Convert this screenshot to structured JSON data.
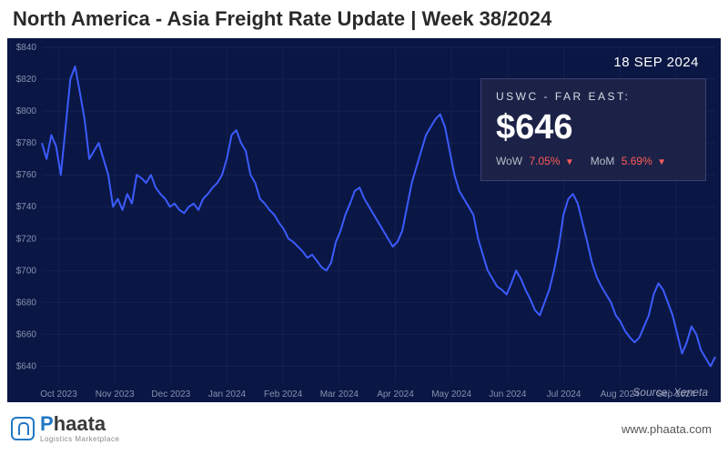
{
  "header": {
    "title": "North America - Asia Freight Rate Update | Week 38/2024"
  },
  "chart": {
    "type": "line",
    "background_color": "#0a1744",
    "grid_color": "#152052",
    "line_color": "#3c5bff",
    "line_width": 2,
    "ylim": [
      630,
      840
    ],
    "ytick_step": 20,
    "ytick_prefix": "$",
    "x_labels": [
      "Oct 2023",
      "Nov 2023",
      "Dec 2023",
      "Jan 2024",
      "Feb 2024",
      "Mar 2024",
      "Apr 2024",
      "May 2024",
      "Jun 2024",
      "Jul 2024",
      "Aug 2024",
      "Sep 2024"
    ],
    "series": [
      780,
      770,
      785,
      778,
      760,
      790,
      820,
      828,
      812,
      795,
      770,
      775,
      780,
      770,
      760,
      740,
      745,
      738,
      748,
      742,
      760,
      758,
      755,
      760,
      752,
      748,
      745,
      740,
      742,
      738,
      736,
      740,
      742,
      738,
      745,
      748,
      752,
      755,
      760,
      770,
      785,
      788,
      780,
      775,
      760,
      755,
      745,
      742,
      738,
      735,
      730,
      726,
      720,
      718,
      715,
      712,
      708,
      710,
      706,
      702,
      700,
      705,
      718,
      725,
      735,
      742,
      750,
      752,
      745,
      740,
      735,
      730,
      725,
      720,
      715,
      718,
      725,
      740,
      755,
      765,
      775,
      785,
      790,
      795,
      798,
      790,
      775,
      760,
      750,
      745,
      740,
      735,
      720,
      710,
      700,
      695,
      690,
      688,
      685,
      692,
      700,
      695,
      688,
      682,
      675,
      672,
      680,
      688,
      700,
      715,
      735,
      745,
      748,
      742,
      730,
      718,
      705,
      696,
      690,
      685,
      680,
      672,
      668,
      662,
      658,
      655,
      658,
      665,
      672,
      685,
      692,
      688,
      680,
      672,
      660,
      648,
      655,
      665,
      660,
      650,
      645,
      640,
      646
    ],
    "source_label": "Source: Xeneta"
  },
  "info": {
    "date": "18 SEP 2024",
    "route": "USWC - FAR EAST:",
    "price": "$646",
    "wow_label": "WoW",
    "wow_value": "7.05%",
    "wow_direction": "down",
    "mom_label": "MoM",
    "mom_value": "5.69%",
    "mom_direction": "down"
  },
  "footer": {
    "logo_name_prefix": "P",
    "logo_name_rest": "haata",
    "logo_tagline": "Logistics Marketplace",
    "site_url": "www.phaata.com"
  },
  "style": {
    "title_fontsize": 22,
    "title_color": "#2a2a2a",
    "price_fontsize": 38,
    "change_negative_color": "#ff5a5a",
    "axis_label_color": "#8890b0",
    "logo_accent_color": "#2178c4"
  }
}
